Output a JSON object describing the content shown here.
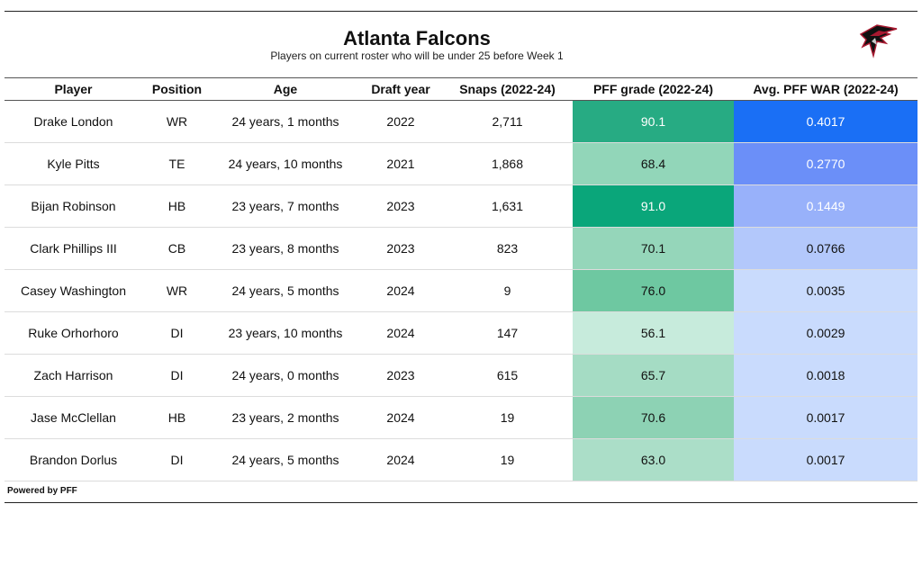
{
  "title": "Atlanta Falcons",
  "subtitle": "Players on current roster who will be under 25 before Week 1",
  "footer": "Powered by PFF",
  "logo_icon": "atlanta-falcons-logo",
  "chart_data": {
    "type": "table",
    "columns": [
      "Player",
      "Position",
      "Age",
      "Draft year",
      "Snaps (2022-24)",
      "PFF grade (2022-24)",
      "Avg. PFF WAR (2022-24)"
    ],
    "rows": [
      [
        "Drake London",
        "WR",
        "24 years, 1 months",
        "2022",
        "2,711",
        "90.1",
        "0.4017"
      ],
      [
        "Kyle Pitts",
        "TE",
        "24 years, 10 months",
        "2021",
        "1,868",
        "68.4",
        "0.2770"
      ],
      [
        "Bijan Robinson",
        "HB",
        "23 years, 7 months",
        "2023",
        "1,631",
        "91.0",
        "0.1449"
      ],
      [
        "Clark Phillips III",
        "CB",
        "23 years, 8 months",
        "2023",
        "823",
        "70.1",
        "0.0766"
      ],
      [
        "Casey Washington",
        "WR",
        "24 years, 5 months",
        "2024",
        "9",
        "76.0",
        "0.0035"
      ],
      [
        "Ruke Orhorhoro",
        "DI",
        "23 years, 10 months",
        "2024",
        "147",
        "56.1",
        "0.0029"
      ],
      [
        "Zach Harrison",
        "DI",
        "24 years, 0 months",
        "2023",
        "615",
        "65.7",
        "0.0018"
      ],
      [
        "Jase McClellan",
        "HB",
        "23 years, 2 months",
        "2024",
        "19",
        "70.6",
        "0.0017"
      ],
      [
        "Brandon Dorlus",
        "DI",
        "24 years, 5 months",
        "2024",
        "19",
        "63.0",
        "0.0017"
      ]
    ],
    "cell_colors": {
      "pff_grade": [
        "#27ab83",
        "#92d6b9",
        "#0aa67a",
        "#95d6ba",
        "#6ec8a1",
        "#c7ebdc",
        "#a5dcc4",
        "#8dd2b4",
        "#abdec8"
      ],
      "avg_war": [
        "#1a6ff5",
        "#6b8ff8",
        "#98b1fa",
        "#b3c8fb",
        "#c9dbfd",
        "#c9dbfd",
        "#c9dbfd",
        "#c9dbfd",
        "#c9dbfd"
      ]
    }
  }
}
